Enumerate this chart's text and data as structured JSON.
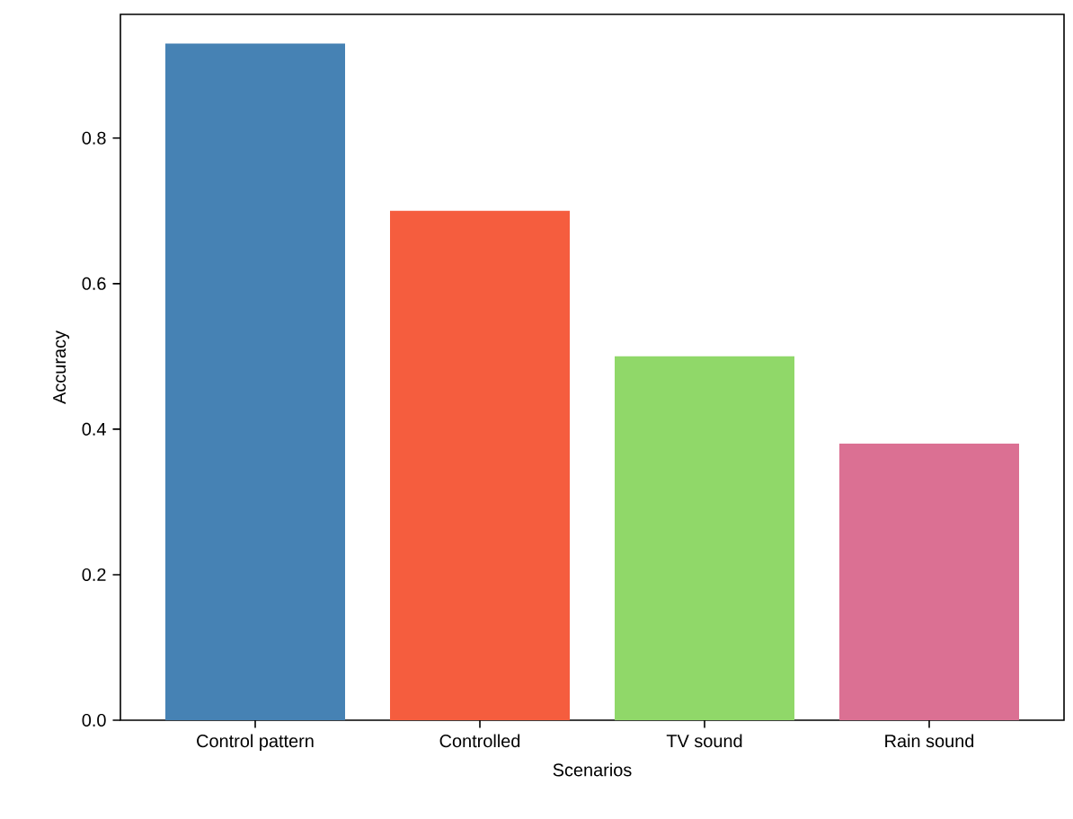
{
  "chart_data": {
    "type": "bar",
    "xlabel": "Scenarios",
    "ylabel": "Accuracy",
    "categories": [
      "Control pattern",
      "Controlled",
      "TV sound",
      "Rain sound"
    ],
    "values": [
      0.93,
      0.7,
      0.5,
      0.38
    ],
    "colors": [
      "#4682b4",
      "#f55d3e",
      "#90d869",
      "#db7093"
    ],
    "ylim": [
      0,
      0.97
    ],
    "yticks": [
      {
        "value": 0,
        "label": "0.0"
      },
      {
        "value": 0.2,
        "label": "0.2"
      },
      {
        "value": 0.4,
        "label": "0.4"
      },
      {
        "value": 0.6,
        "label": "0.6"
      },
      {
        "value": 0.8,
        "label": "0.8"
      }
    ],
    "grid": false
  }
}
